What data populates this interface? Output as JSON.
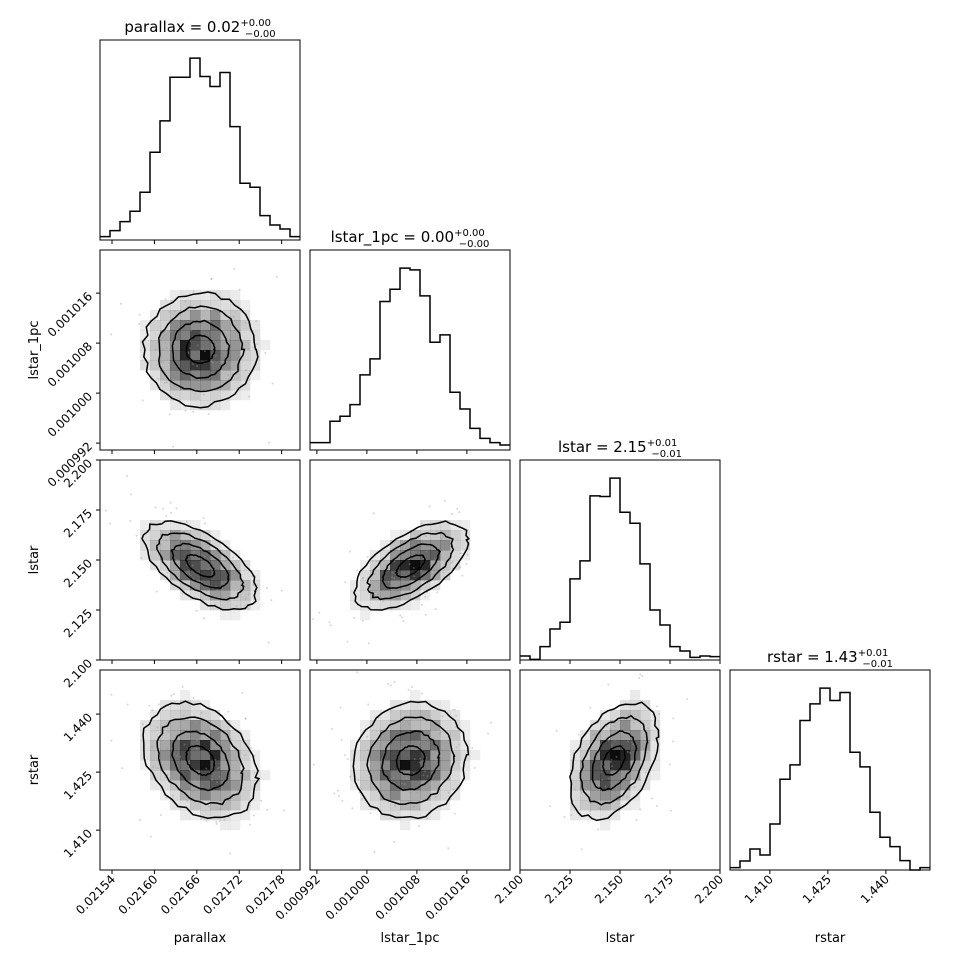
{
  "chart_data": {
    "type": "corner",
    "parameters": [
      "parallax",
      "lstar_1pc",
      "lstar",
      "rstar"
    ],
    "axis_labels": [
      "parallax",
      "lstar_1pc",
      "lstar",
      "rstar"
    ],
    "titles": [
      {
        "text": "parallax = 0.02",
        "plus": "+0.00",
        "minus": "−0.00"
      },
      {
        "text": "lstar_1pc = 0.00",
        "plus": "+0.00",
        "minus": "−0.00"
      },
      {
        "text": "lstar = 2.15",
        "plus": "+0.01",
        "minus": "−0.01"
      },
      {
        "text": "rstar = 1.43",
        "plus": "+0.01",
        "minus": "−0.01"
      }
    ],
    "ranges": [
      [
        0.021523,
        0.021806
      ],
      [
        0.0009909,
        0.0010229
      ],
      [
        2.1,
        2.2
      ],
      [
        1.3997,
        1.4514
      ]
    ],
    "ticks": [
      {
        "values": [
          0.02154,
          0.0216,
          0.02166,
          0.02172,
          0.02178
        ],
        "labels": [
          "0.02154",
          "0.02160",
          "0.02166",
          "0.02172",
          "0.02178"
        ]
      },
      {
        "values": [
          0.000992,
          0.001,
          0.001008,
          0.001016
        ],
        "labels": [
          "0.000992",
          "0.001000",
          "0.001008",
          "0.001016"
        ]
      },
      {
        "values": [
          2.1,
          2.125,
          2.15,
          2.175,
          2.2
        ],
        "labels": [
          "2.100",
          "2.125",
          "2.150",
          "2.175",
          "2.200"
        ]
      },
      {
        "values": [
          1.41,
          1.425,
          1.44
        ],
        "labels": [
          "1.410",
          "1.425",
          "1.440"
        ]
      }
    ],
    "histograms": [
      [
        10,
        28,
        55,
        86,
        143,
        263,
        357,
        488,
        488,
        545,
        490,
        460,
        502,
        340,
        170,
        158,
        73,
        45,
        33,
        10
      ],
      [
        22,
        22,
        86,
        101,
        136,
        225,
        273,
        445,
        482,
        545,
        540,
        462,
        323,
        345,
        173,
        123,
        65,
        35,
        22,
        15
      ],
      [
        12,
        2,
        40,
        93,
        113,
        243,
        297,
        492,
        490,
        545,
        443,
        410,
        288,
        150,
        105,
        40,
        27,
        8,
        12,
        10
      ],
      [
        7,
        27,
        63,
        45,
        138,
        272,
        315,
        448,
        498,
        545,
        508,
        532,
        353,
        309,
        173,
        98,
        70,
        28,
        0,
        7
      ]
    ],
    "means": [
      0.021665,
      0.001007,
      2.147,
      1.428
    ],
    "stds": [
      4e-05,
      4.5e-06,
      0.011,
      0.0075
    ],
    "correlations": {
      "parallax|lstar_1pc": 0.0,
      "parallax|lstar": -0.6,
      "lstar_1pc|lstar": 0.6,
      "parallax|rstar": -0.3,
      "lstar_1pc|rstar": 0.1,
      "lstar|rstar": 0.4
    },
    "grid": false,
    "colors": {
      "line": "#000000",
      "density": "#000000"
    }
  }
}
